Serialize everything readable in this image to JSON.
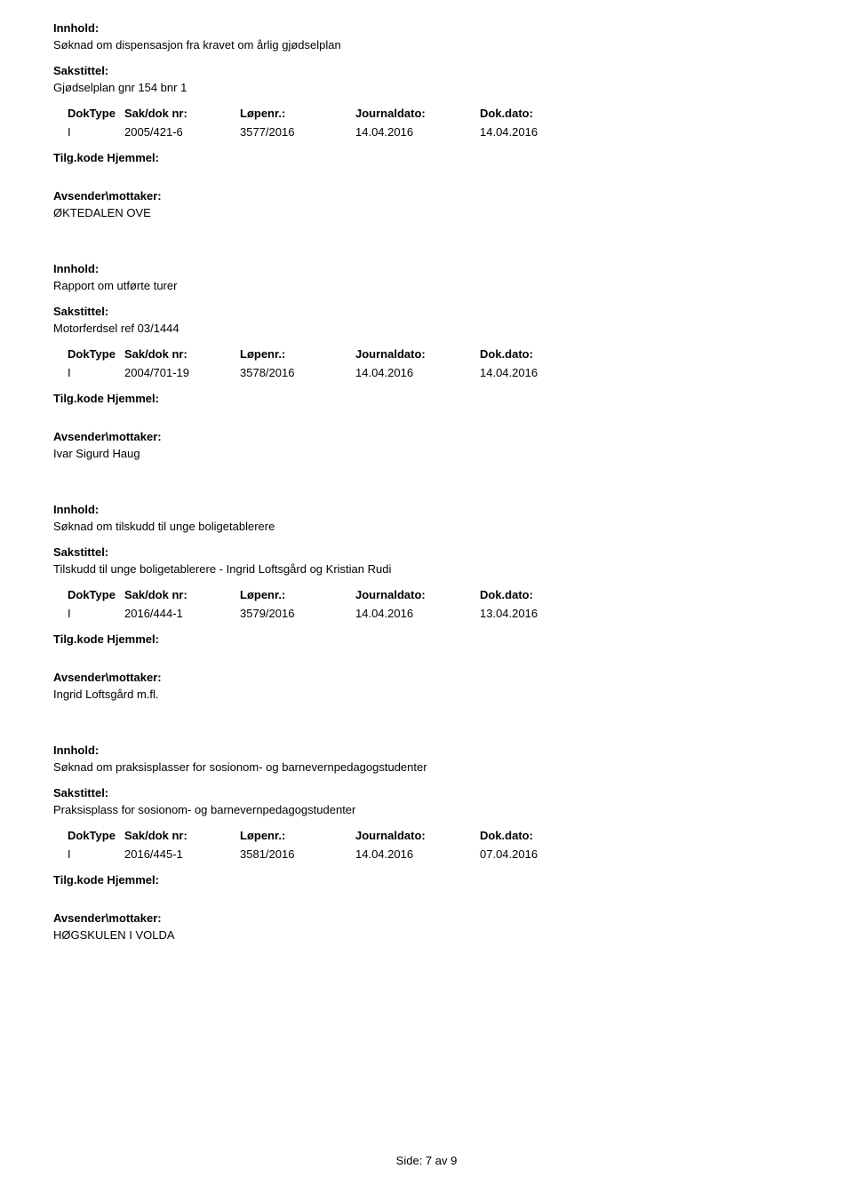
{
  "labels": {
    "innhold": "Innhold:",
    "sakstittel": "Sakstittel:",
    "doktype": "DokType",
    "saknr": "Sak/dok nr:",
    "lopenr": "Løpenr.:",
    "journaldato": "Journaldato:",
    "dokdato": "Dok.dato:",
    "tilgkode": "Tilg.kode Hjemmel:",
    "avsender": "Avsender\\mottaker:"
  },
  "entries": [
    {
      "innhold": "Søknad om dispensasjon fra kravet om årlig gjødselplan",
      "sakstittel": "Gjødselplan gnr 154 bnr 1",
      "doktype": "I",
      "saknr": "2005/421-6",
      "lopenr": "3577/2016",
      "journaldato": "14.04.2016",
      "dokdato": "14.04.2016",
      "avsender": "ØKTEDALEN OVE"
    },
    {
      "innhold": "Rapport om utførte turer",
      "sakstittel": "Motorferdsel ref 03/1444",
      "doktype": "I",
      "saknr": "2004/701-19",
      "lopenr": "3578/2016",
      "journaldato": "14.04.2016",
      "dokdato": "14.04.2016",
      "avsender": "Ivar Sigurd Haug"
    },
    {
      "innhold": "Søknad om tilskudd til unge boligetablerere",
      "sakstittel": "Tilskudd til unge boligetablerere - Ingrid Loftsgård og Kristian Rudi",
      "doktype": "I",
      "saknr": "2016/444-1",
      "lopenr": "3579/2016",
      "journaldato": "14.04.2016",
      "dokdato": "13.04.2016",
      "avsender": "Ingrid Loftsgård m.fl."
    },
    {
      "innhold": "Søknad om praksisplasser for sosionom- og barnevernpedagogstudenter",
      "sakstittel": "Praksisplass for sosionom- og barnevernpedagogstudenter",
      "doktype": "I",
      "saknr": "2016/445-1",
      "lopenr": "3581/2016",
      "journaldato": "14.04.2016",
      "dokdato": "07.04.2016",
      "avsender": "HØGSKULEN I VOLDA"
    }
  ],
  "footer": {
    "text": "Side:  7 av  9"
  }
}
